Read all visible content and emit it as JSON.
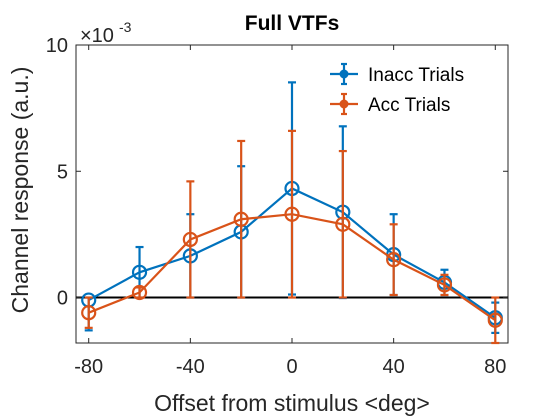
{
  "chart_data": {
    "type": "line",
    "title": "Full VTFs",
    "xlabel": "Offset from stimulus <deg>",
    "ylabel": "Channel response (a.u.)",
    "y_multiplier": {
      "base": "×10",
      "exponent": "-3"
    },
    "xlim": [
      -85,
      85
    ],
    "ylim": [
      -0.0018,
      0.01
    ],
    "x_ticks": [
      -80,
      -40,
      0,
      40,
      80
    ],
    "x_tick_labels": [
      "-80",
      "-40",
      "0",
      "40",
      "80"
    ],
    "y_ticks": [
      0,
      0.005,
      0.01
    ],
    "y_tick_labels": [
      "0",
      "5",
      "10"
    ],
    "zero_line": true,
    "grid": false,
    "legend_position": "top-right",
    "x": [
      -80,
      -60,
      -40,
      -20,
      0,
      20,
      40,
      60,
      80
    ],
    "series": [
      {
        "name": "Inacc Trials",
        "color": "#0072BD",
        "values": [
          -0.0001,
          0.001,
          0.00165,
          0.0026,
          0.00432,
          0.00338,
          0.0017,
          0.0006,
          -0.0008
        ],
        "err_low": [
          0.0012,
          0.001,
          0.00165,
          0.0026,
          0.0042,
          0.0034,
          0.0016,
          0.0005,
          0.0006
        ],
        "err_high": [
          0.0001,
          0.001,
          0.00165,
          0.0026,
          0.0042,
          0.0034,
          0.0016,
          0.0005,
          0.0006
        ]
      },
      {
        "name": "Acc Trials",
        "color": "#D95319",
        "values": [
          -0.0006,
          0.0002,
          0.0023,
          0.0031,
          0.0033,
          0.0029,
          0.0015,
          0.0005,
          -0.0009
        ],
        "err_low": [
          0.0006,
          0.0002,
          0.0023,
          0.0031,
          0.0033,
          0.0029,
          0.0014,
          0.0004,
          0.0009
        ],
        "err_high": [
          0.0006,
          0.0002,
          0.0023,
          0.0031,
          0.0033,
          0.0029,
          0.0014,
          0.0004,
          0.0009
        ]
      }
    ]
  }
}
